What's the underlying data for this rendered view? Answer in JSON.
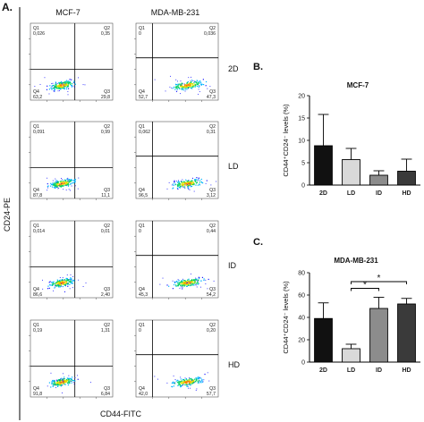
{
  "figure_label": "A.",
  "flow": {
    "columns": [
      "MCF-7",
      "MDA-MB-231"
    ],
    "y_label": "CD24-PE",
    "x_label": "CD44-FITC",
    "conditions": [
      "2D",
      "LD",
      "ID",
      "HD"
    ],
    "quadrant_names": [
      "Q1",
      "Q2",
      "Q3",
      "Q4"
    ],
    "panels": [
      {
        "row": "2D",
        "line": "MCF-7",
        "q1": "0,026",
        "q2": "0,35",
        "q3": "29,8",
        "q4": "63,2"
      },
      {
        "row": "2D",
        "line": "MDA-MB-231",
        "q1": "0",
        "q2": "0,036",
        "q3": "47,3",
        "q4": "52,7"
      },
      {
        "row": "LD",
        "line": "MCF-7",
        "q1": "0,091",
        "q2": "0,99",
        "q3": "11,1",
        "q4": "87,8"
      },
      {
        "row": "LD",
        "line": "MDA-MB-231",
        "q1": "0,062",
        "q2": "0,31",
        "q3": "3,12",
        "q4": "96,5"
      },
      {
        "row": "ID",
        "line": "MCF-7",
        "q1": "0,014",
        "q2": "0,01",
        "q3": "2,40",
        "q4": "86,6"
      },
      {
        "row": "ID",
        "line": "MDA-MB-231",
        "q1": "0",
        "q2": "0,44",
        "q3": "54,2",
        "q4": "45,3"
      },
      {
        "row": "HD",
        "line": "MCF-7",
        "q1": "0,19",
        "q2": "1,31",
        "q3": "6,84",
        "q4": "91,8"
      },
      {
        "row": "HD",
        "line": "MDA-MB-231",
        "q1": "0",
        "q2": "0,20",
        "q3": "57,7",
        "q4": "42,0"
      }
    ]
  },
  "chart_data": [
    {
      "type": "bar",
      "panel_label": "B.",
      "title": "MCF-7",
      "ylabel": "CD44⁺CD24⁻ levels (%)",
      "categories": [
        "2D",
        "LD",
        "ID",
        "HD"
      ],
      "values": [
        8.8,
        5.7,
        2.2,
        3.1
      ],
      "errors": [
        7.0,
        2.5,
        1.0,
        2.7
      ],
      "ylim": [
        0,
        20
      ],
      "yticks": [
        0,
        5,
        10,
        15,
        20
      ],
      "bar_colors": [
        "#111111",
        "#d9d9d9",
        "#8c8c8c",
        "#3a3a3a"
      ],
      "grid": false
    },
    {
      "type": "bar",
      "panel_label": "C.",
      "title": "MDA-MB-231",
      "ylabel": "CD44⁺CD24⁻ levels (%)",
      "categories": [
        "2D",
        "LD",
        "ID",
        "HD"
      ],
      "values": [
        39,
        12,
        48,
        52
      ],
      "errors": [
        14,
        4,
        10,
        5
      ],
      "ylim": [
        0,
        80
      ],
      "yticks": [
        0,
        20,
        40,
        60,
        80
      ],
      "bar_colors": [
        "#111111",
        "#d9d9d9",
        "#8c8c8c",
        "#3a3a3a"
      ],
      "grid": false,
      "significance": [
        {
          "from": "LD",
          "to": "ID",
          "label": "*"
        },
        {
          "from": "LD",
          "to": "HD",
          "label": "*"
        }
      ]
    }
  ]
}
